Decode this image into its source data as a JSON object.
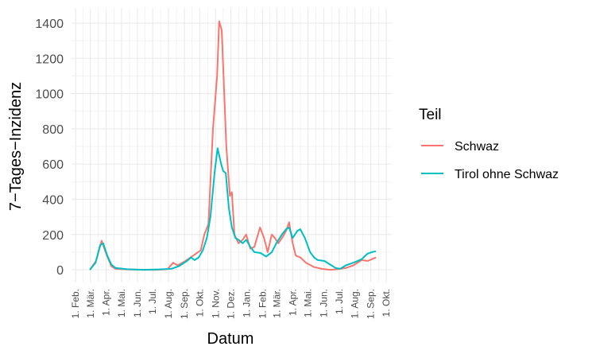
{
  "chart_data": {
    "type": "line",
    "x_label": "Datum",
    "y_label": "7−Tages−Inzidenz",
    "legend_title": "Teil",
    "legend": "right",
    "grid": true,
    "xlim": [
      -8,
      619
    ],
    "ylim": [
      -72,
      1486
    ],
    "yticks": [
      0,
      200,
      400,
      600,
      800,
      1000,
      1200,
      1400
    ],
    "xticks": [
      {
        "value": 0,
        "label": "1. Feb."
      },
      {
        "value": 29,
        "label": "1. Mär."
      },
      {
        "value": 60,
        "label": "1. Apr."
      },
      {
        "value": 90,
        "label": "1. Mai."
      },
      {
        "value": 121,
        "label": "1. Jun."
      },
      {
        "value": 151,
        "label": "1. Jul."
      },
      {
        "value": 182,
        "label": "1. Aug."
      },
      {
        "value": 213,
        "label": "1. Sep."
      },
      {
        "value": 243,
        "label": "1. Okt."
      },
      {
        "value": 274,
        "label": "1. Nov."
      },
      {
        "value": 304,
        "label": "1. Dez."
      },
      {
        "value": 335,
        "label": "1. Jan."
      },
      {
        "value": 366,
        "label": "1. Feb."
      },
      {
        "value": 394,
        "label": "1. Mär."
      },
      {
        "value": 425,
        "label": "1. Apr."
      },
      {
        "value": 455,
        "label": "1. Mai."
      },
      {
        "value": 486,
        "label": "1. Jun."
      },
      {
        "value": 516,
        "label": "1. Jul."
      },
      {
        "value": 547,
        "label": "1. Aug."
      },
      {
        "value": 578,
        "label": "1. Sep."
      },
      {
        "value": 608,
        "label": "1. Okt."
      }
    ],
    "series": [
      {
        "name": "Schwaz",
        "color": "#f8766d",
        "x": [
          28,
          40,
          51,
          60,
          70,
          78,
          100,
          130,
          160,
          180,
          191,
          200,
          215,
          230,
          245,
          252,
          260,
          269,
          277,
          281,
          286,
          291,
          295,
          302,
          306,
          311,
          319,
          327,
          334,
          342,
          350,
          361,
          369,
          376,
          384,
          390,
          397,
          404,
          412,
          418,
          425,
          431,
          440,
          451,
          467,
          482,
          498,
          513,
          529,
          544,
          560,
          572,
          580,
          588
        ],
        "values": [
          0,
          50,
          165,
          90,
          20,
          5,
          2,
          0,
          0,
          3,
          40,
          25,
          50,
          80,
          110,
          200,
          260,
          800,
          1100,
          1410,
          1360,
          1000,
          700,
          420,
          440,
          200,
          150,
          170,
          200,
          120,
          130,
          240,
          180,
          100,
          200,
          180,
          150,
          180,
          220,
          270,
          150,
          80,
          70,
          40,
          15,
          5,
          0,
          3,
          10,
          25,
          55,
          50,
          60,
          70
        ]
      },
      {
        "name": "Tirol ohne Schwaz",
        "color": "#00bfc4",
        "x": [
          28,
          39,
          48,
          54,
          62,
          70,
          78,
          101,
          132,
          163,
          187,
          202,
          218,
          226,
          233,
          241,
          249,
          257,
          264,
          272,
          278,
          285,
          289,
          294,
          300,
          306,
          313,
          319,
          327,
          334,
          342,
          350,
          362,
          373,
          384,
          393,
          404,
          412,
          418,
          425,
          434,
          440,
          449,
          459,
          467,
          474,
          487,
          498,
          509,
          518,
          529,
          544,
          560,
          571,
          580,
          588
        ],
        "values": [
          0,
          40,
          140,
          150,
          80,
          30,
          10,
          3,
          0,
          2,
          5,
          20,
          50,
          70,
          55,
          70,
          110,
          180,
          300,
          550,
          690,
          600,
          560,
          550,
          350,
          240,
          180,
          170,
          150,
          170,
          130,
          100,
          95,
          75,
          100,
          150,
          200,
          230,
          240,
          180,
          220,
          230,
          180,
          100,
          70,
          55,
          50,
          30,
          10,
          5,
          25,
          40,
          60,
          90,
          100,
          105
        ]
      }
    ]
  }
}
